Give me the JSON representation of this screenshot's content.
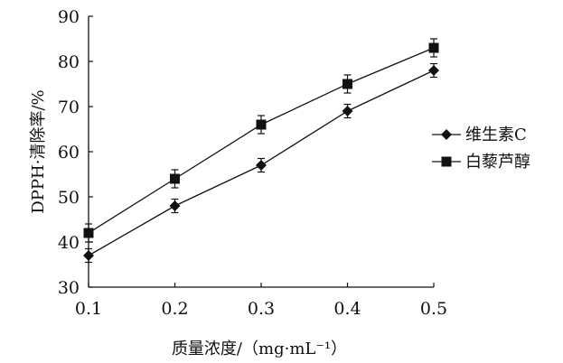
{
  "chart_data": {
    "type": "line",
    "title": "",
    "xlabel": "质量浓度/（mg·mL⁻¹）",
    "ylabel": "DPPH·清除率/%",
    "x": [
      0.1,
      0.2,
      0.3,
      0.4,
      0.5
    ],
    "x_tick_labels": [
      "0.1",
      "0.2",
      "0.3",
      "0.4",
      "0.5"
    ],
    "y_tick_labels": [
      "30",
      "40",
      "50",
      "60",
      "70",
      "80",
      "90"
    ],
    "xlim": [
      0.1,
      0.5
    ],
    "ylim": [
      30,
      90
    ],
    "grid": false,
    "legend_position": "right",
    "series": [
      {
        "name": "维生素C",
        "marker": "diamond",
        "color": "#111111",
        "values": [
          37,
          48,
          57,
          69,
          78
        ],
        "errors": [
          1.5,
          1.5,
          1.5,
          1.5,
          1.5
        ]
      },
      {
        "name": "白藜芦醇",
        "marker": "square",
        "color": "#111111",
        "values": [
          42,
          54,
          66,
          75,
          83
        ],
        "errors": [
          2,
          2,
          2,
          2,
          2
        ]
      }
    ]
  }
}
